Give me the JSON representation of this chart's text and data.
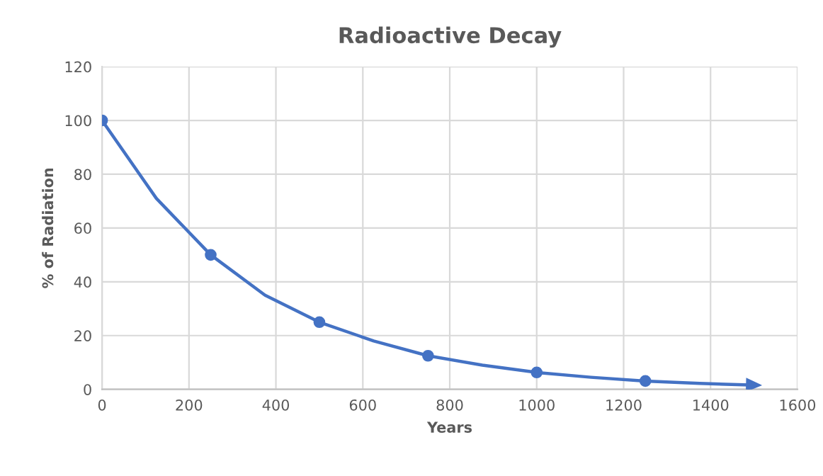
{
  "chart_data": {
    "type": "line",
    "title": "Radioactive Decay",
    "xlabel": "Years",
    "ylabel": "% of Radiation",
    "series": [
      {
        "color": "#4472c4",
        "marker": "none",
        "x": [
          0,
          125,
          250,
          375,
          500,
          625,
          750,
          875,
          1000,
          1125,
          1250,
          1375,
          1500
        ],
        "values": [
          100,
          71,
          50,
          35,
          25,
          18,
          12.5,
          9,
          6.3,
          4.5,
          3.1,
          2.2,
          1.6
        ]
      },
      {
        "type": "scatter",
        "color": "#4472c4",
        "marker": "circle",
        "x": [
          0,
          250,
          500,
          750,
          1000,
          1250
        ],
        "values": [
          100,
          50,
          25,
          12.5,
          6.3,
          3.1
        ]
      }
    ],
    "xlim": [
      0,
      1600
    ],
    "xticks": [
      0,
      200,
      400,
      600,
      800,
      1000,
      1200,
      1400,
      1600
    ],
    "ylim": [
      0,
      120
    ],
    "yticks": [
      0,
      20,
      40,
      60,
      80,
      100,
      120
    ],
    "grid": true
  }
}
